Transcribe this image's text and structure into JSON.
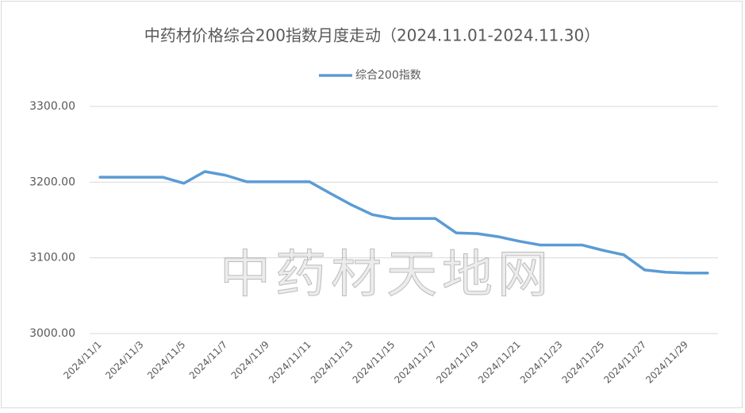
{
  "chart_data": {
    "type": "line",
    "title": "中药材价格综合200指数月度走动（2024.11.01-2024.11.30）",
    "watermark": "中药材天地网",
    "categories": [
      "2024/11/1",
      null,
      "2024/11/3",
      null,
      "2024/11/5",
      null,
      "2024/11/7",
      null,
      "2024/11/9",
      null,
      "2024/11/11",
      null,
      "2024/11/13",
      null,
      "2024/11/15",
      null,
      "2024/11/17",
      null,
      "2024/11/19",
      null,
      "2024/11/21",
      null,
      "2024/11/23",
      null,
      "2024/11/25",
      null,
      "2024/11/27",
      null,
      "2024/11/29",
      null
    ],
    "series": [
      {
        "name": "综合200指数",
        "color": "#5b9bd5",
        "values": [
          3206.5,
          3206.5,
          3206.5,
          3206.5,
          3198.5,
          3214,
          3209,
          3200.5,
          3200.5,
          3200.5,
          3200.5,
          3185,
          3170,
          3157,
          3152,
          3152,
          3152,
          3133,
          3132,
          3128,
          3122,
          3117,
          3117,
          3117,
          3110,
          3104,
          3084,
          3081,
          3080,
          3080
        ]
      }
    ],
    "ylim": [
      3000,
      3300
    ],
    "yticks": [
      {
        "value": 3000,
        "label": "3000.00"
      },
      {
        "value": 3100,
        "label": "3100.00"
      },
      {
        "value": 3200,
        "label": "3200.00"
      },
      {
        "value": 3300,
        "label": "3300.00"
      }
    ],
    "grid": true,
    "legend": "top"
  }
}
